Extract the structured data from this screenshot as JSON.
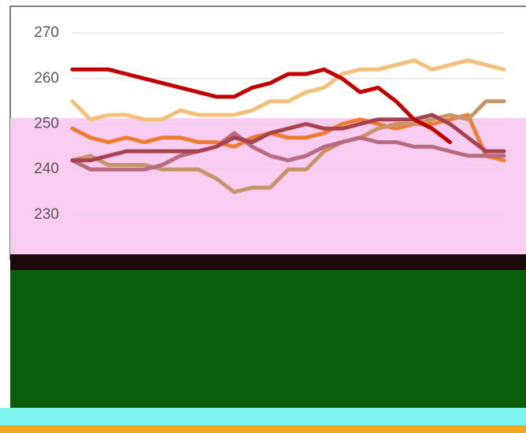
{
  "chart_data": {
    "type": "line",
    "categories": [
      null,
      null,
      null,
      null,
      null,
      null,
      null,
      null,
      null,
      null,
      null,
      null,
      null,
      null,
      null,
      null,
      null,
      null,
      null,
      null,
      null,
      null,
      null,
      null,
      null
    ],
    "ylim": [
      228,
      272
    ],
    "yticks": [
      230,
      240,
      250,
      260,
      270
    ],
    "grid": true,
    "series": [
      {
        "color": "#f4c07a",
        "values": [
          255,
          251,
          252,
          252,
          251,
          251,
          253,
          252,
          252,
          252,
          253,
          255,
          255,
          257,
          258,
          261,
          262,
          262,
          263,
          264,
          262,
          263,
          264,
          263,
          262
        ]
      },
      {
        "color": "#ed7d31",
        "values": [
          249,
          247,
          246,
          247,
          246,
          247,
          247,
          246,
          246,
          245,
          247,
          248,
          247,
          247,
          248,
          250,
          251,
          250,
          249,
          250,
          250,
          251,
          252,
          243,
          242
        ]
      },
      {
        "color": "#c8956a",
        "values": [
          242,
          243,
          241,
          241,
          241,
          240,
          240,
          240,
          238,
          235,
          236,
          236,
          240,
          240,
          244,
          246,
          247,
          249,
          250,
          250,
          251,
          252,
          251,
          255,
          255
        ]
      },
      {
        "color": "#b86a80",
        "values": [
          242,
          240,
          240,
          240,
          240,
          241,
          243,
          244,
          245,
          248,
          245,
          243,
          242,
          243,
          245,
          246,
          247,
          246,
          246,
          245,
          245,
          244,
          243,
          243,
          243
        ]
      },
      {
        "color": "#a8424e",
        "values": [
          242,
          242,
          243,
          244,
          244,
          244,
          244,
          244,
          245,
          247,
          246,
          248,
          249,
          250,
          249,
          249,
          250,
          251,
          251,
          251,
          252,
          250,
          247,
          244,
          244
        ]
      },
      {
        "color": "#c00000",
        "values": [
          262,
          262,
          262,
          261,
          260,
          259,
          258,
          257,
          256,
          256,
          258,
          259,
          261,
          261,
          262,
          260,
          257,
          258,
          255,
          251,
          249,
          246,
          null,
          null,
          null
        ]
      }
    ]
  }
}
